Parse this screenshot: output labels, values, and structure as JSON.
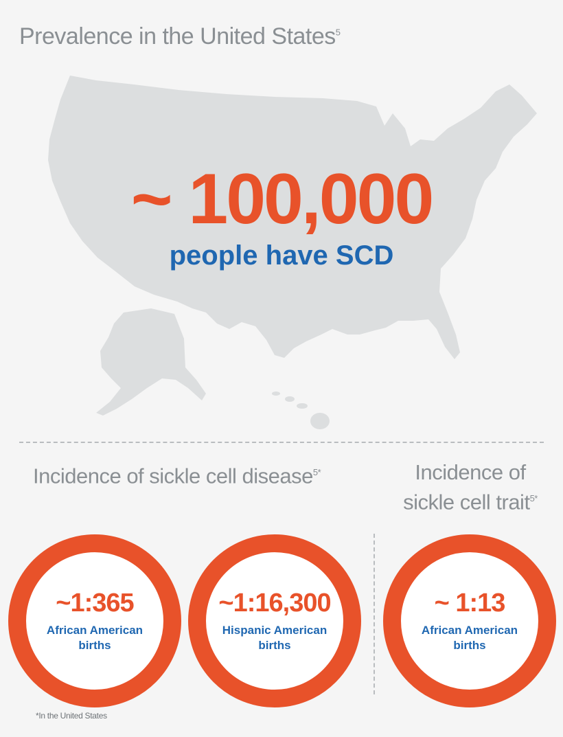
{
  "header": {
    "title": "Prevalence in the United States",
    "title_ref": "5"
  },
  "prevalence": {
    "value": "~ 100,000",
    "label": "people have SCD"
  },
  "disease_section": {
    "title": "Incidence of sickle cell disease",
    "title_ref": "5*",
    "items": [
      {
        "ratio": "~1:365",
        "label": "African American births"
      },
      {
        "ratio": "~1:16,300",
        "label": "Hispanic American births"
      }
    ]
  },
  "trait_section": {
    "title_line1": "Incidence of",
    "title_line2": "sickle cell trait",
    "title_ref": "5*",
    "items": [
      {
        "ratio": "~ 1:13",
        "label": "African American births"
      }
    ]
  },
  "footnote": "*In the United States",
  "colors": {
    "accent_orange": "#e8522a",
    "accent_blue": "#1f67b1",
    "map_gray": "#dcdedf",
    "text_gray": "#8a8f93",
    "background": "#f5f5f5"
  }
}
